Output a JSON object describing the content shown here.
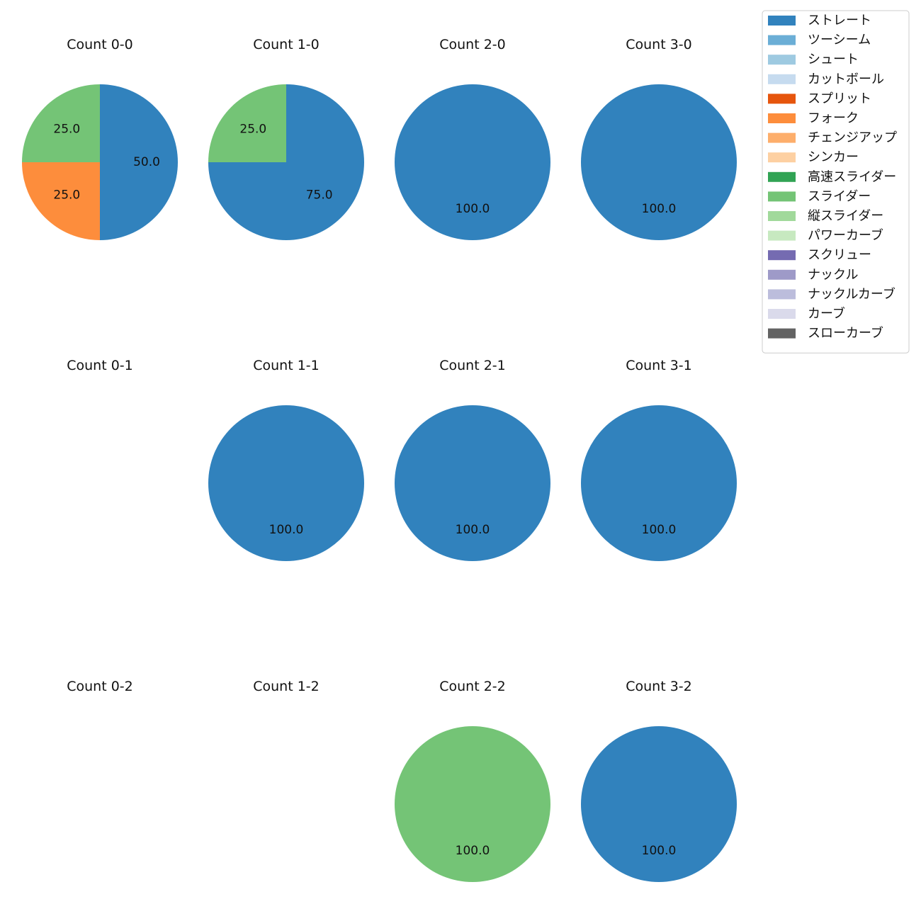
{
  "chart_data": {
    "type": "pie",
    "legend": {
      "placement": "top-right",
      "entries": [
        {
          "name": "ストレート",
          "color": "#3182bd"
        },
        {
          "name": "ツーシーム",
          "color": "#6baed6"
        },
        {
          "name": "シュート",
          "color": "#9ecae1"
        },
        {
          "name": "カットボール",
          "color": "#c6dbef"
        },
        {
          "name": "スプリット",
          "color": "#e6550d"
        },
        {
          "name": "フォーク",
          "color": "#fd8d3c"
        },
        {
          "name": "チェンジアップ",
          "color": "#fdae6b"
        },
        {
          "name": "シンカー",
          "color": "#fdd0a2"
        },
        {
          "name": "高速スライダー",
          "color": "#31a354"
        },
        {
          "name": "スライダー",
          "color": "#74c476"
        },
        {
          "name": "縦スライダー",
          "color": "#a1d99b"
        },
        {
          "name": "パワーカーブ",
          "color": "#c7e9c0"
        },
        {
          "name": "スクリュー",
          "color": "#756bb1"
        },
        {
          "name": "ナックル",
          "color": "#9e9ac8"
        },
        {
          "name": "ナックルカーブ",
          "color": "#bcbddc"
        },
        {
          "name": "カーブ",
          "color": "#dadaeb"
        },
        {
          "name": "スローカーブ",
          "color": "#636363"
        }
      ]
    },
    "panels": [
      {
        "title": "Count 0-0",
        "slices": [
          {
            "pitch": "ストレート",
            "value": 50.0
          },
          {
            "pitch": "フォーク",
            "value": 25.0
          },
          {
            "pitch": "スライダー",
            "value": 25.0
          }
        ]
      },
      {
        "title": "Count 1-0",
        "slices": [
          {
            "pitch": "ストレート",
            "value": 75.0
          },
          {
            "pitch": "スライダー",
            "value": 25.0
          }
        ]
      },
      {
        "title": "Count 2-0",
        "slices": [
          {
            "pitch": "ストレート",
            "value": 100.0
          }
        ]
      },
      {
        "title": "Count 3-0",
        "slices": [
          {
            "pitch": "ストレート",
            "value": 100.0
          }
        ]
      },
      {
        "title": "Count 0-1",
        "slices": []
      },
      {
        "title": "Count 1-1",
        "slices": [
          {
            "pitch": "ストレート",
            "value": 100.0
          }
        ]
      },
      {
        "title": "Count 2-1",
        "slices": [
          {
            "pitch": "ストレート",
            "value": 100.0
          }
        ]
      },
      {
        "title": "Count 3-1",
        "slices": [
          {
            "pitch": "ストレート",
            "value": 100.0
          }
        ]
      },
      {
        "title": "Count 0-2",
        "slices": []
      },
      {
        "title": "Count 1-2",
        "slices": []
      },
      {
        "title": "Count 2-2",
        "slices": [
          {
            "pitch": "スライダー",
            "value": 100.0
          }
        ]
      },
      {
        "title": "Count 3-2",
        "slices": [
          {
            "pitch": "ストレート",
            "value": 100.0
          }
        ]
      }
    ]
  }
}
